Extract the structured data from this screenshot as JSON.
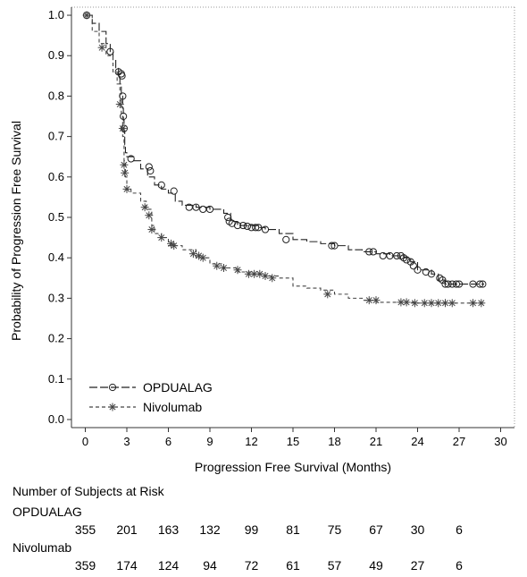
{
  "chart_data": {
    "type": "line",
    "title": "",
    "xlabel": "Progression Free Survival (Months)",
    "ylabel": "Probability of Progression Free Survival",
    "xlim": [
      -1,
      31
    ],
    "ylim": [
      -0.02,
      1.02
    ],
    "xticks": [
      0,
      3,
      6,
      9,
      12,
      15,
      18,
      21,
      24,
      27,
      30
    ],
    "yticks": [
      0.0,
      0.1,
      0.2,
      0.3,
      0.4,
      0.5,
      0.6,
      0.7,
      0.8,
      0.9,
      1.0
    ],
    "grid": false,
    "legend_position": "bottom-left",
    "series": [
      {
        "name": "OPDUALAG",
        "marker": "circle",
        "line_style": "long-dash",
        "color": "#222222",
        "x": [
          0,
          0.5,
          1.0,
          1.5,
          1.8,
          2.0,
          2.2,
          2.4,
          2.5,
          2.6,
          2.7,
          2.75,
          2.8,
          2.85,
          2.9,
          3.0,
          3.5,
          4.0,
          4.5,
          5.0,
          5.5,
          6.0,
          6.5,
          7.0,
          8.0,
          9.0,
          10.0,
          10.5,
          11.0,
          12.0,
          12.5,
          13.0,
          14.0,
          15.0,
          16.0,
          17.0,
          18.0,
          19.0,
          20.0,
          21.0,
          22.0,
          23.0,
          23.5,
          24.0,
          25.0,
          25.5,
          26.0,
          27.0,
          28.0,
          28.8
        ],
        "y": [
          1.0,
          0.98,
          0.96,
          0.93,
          0.91,
          0.89,
          0.87,
          0.85,
          0.83,
          0.8,
          0.77,
          0.74,
          0.71,
          0.68,
          0.66,
          0.65,
          0.64,
          0.62,
          0.6,
          0.58,
          0.57,
          0.56,
          0.54,
          0.53,
          0.525,
          0.52,
          0.51,
          0.49,
          0.48,
          0.48,
          0.475,
          0.47,
          0.46,
          0.445,
          0.44,
          0.435,
          0.43,
          0.42,
          0.415,
          0.41,
          0.405,
          0.4,
          0.39,
          0.37,
          0.36,
          0.345,
          0.335,
          0.335,
          0.335,
          0.335
        ],
        "censor_x": [
          0.1,
          1.8,
          2.4,
          2.6,
          2.65,
          2.7,
          2.75,
          2.8,
          3.3,
          4.6,
          4.7,
          5.5,
          6.4,
          7.5,
          8.0,
          8.5,
          9.0,
          10.3,
          10.4,
          10.6,
          11.0,
          11.4,
          11.7,
          12.0,
          12.3,
          12.5,
          13.0,
          14.5,
          17.8,
          18.0,
          20.5,
          20.8,
          21.5,
          22.0,
          22.5,
          22.8,
          23.0,
          23.2,
          23.5,
          23.7,
          24.0,
          24.6,
          25.0,
          25.6,
          25.8,
          26.0,
          26.2,
          26.5,
          26.8,
          27.0,
          28.0,
          28.5,
          28.7
        ],
        "censor_y": [
          1.0,
          0.91,
          0.86,
          0.855,
          0.85,
          0.8,
          0.75,
          0.72,
          0.645,
          0.625,
          0.615,
          0.58,
          0.565,
          0.525,
          0.525,
          0.52,
          0.52,
          0.5,
          0.49,
          0.485,
          0.48,
          0.48,
          0.478,
          0.475,
          0.475,
          0.475,
          0.47,
          0.445,
          0.43,
          0.43,
          0.415,
          0.415,
          0.405,
          0.405,
          0.405,
          0.405,
          0.4,
          0.395,
          0.39,
          0.38,
          0.37,
          0.365,
          0.36,
          0.35,
          0.345,
          0.335,
          0.335,
          0.335,
          0.335,
          0.335,
          0.335,
          0.335,
          0.335
        ]
      },
      {
        "name": "Nivolumab",
        "marker": "asterisk",
        "line_style": "short-dash",
        "color": "#444444",
        "x": [
          0,
          0.5,
          1.0,
          1.5,
          2.0,
          2.3,
          2.5,
          2.6,
          2.7,
          2.8,
          2.9,
          3.0,
          3.3,
          4.0,
          4.4,
          4.8,
          5.0,
          5.5,
          6.0,
          7.0,
          8.0,
          9.0,
          10.0,
          11.0,
          12.0,
          13.0,
          14.0,
          15.0,
          16.0,
          17.0,
          18.0,
          19.0,
          20.0,
          21.0,
          22.0,
          23.0,
          24.0,
          25.0,
          26.0,
          27.0,
          28.0,
          28.8
        ],
        "y": [
          1.0,
          0.96,
          0.93,
          0.9,
          0.86,
          0.83,
          0.79,
          0.75,
          0.7,
          0.64,
          0.6,
          0.57,
          0.56,
          0.54,
          0.52,
          0.48,
          0.46,
          0.45,
          0.43,
          0.42,
          0.4,
          0.385,
          0.375,
          0.365,
          0.36,
          0.355,
          0.35,
          0.33,
          0.325,
          0.32,
          0.31,
          0.3,
          0.295,
          0.29,
          0.29,
          0.29,
          0.288,
          0.288,
          0.288,
          0.288,
          0.288,
          0.288
        ],
        "censor_x": [
          0.1,
          1.2,
          2.5,
          2.7,
          2.8,
          2.85,
          3.0,
          4.3,
          4.6,
          4.8,
          5.5,
          6.2,
          6.4,
          7.8,
          8.2,
          8.5,
          9.5,
          10.0,
          11.0,
          11.8,
          12.2,
          12.6,
          13.0,
          13.5,
          17.5,
          20.5,
          21.0,
          22.8,
          23.2,
          23.8,
          24.5,
          25.0,
          25.5,
          26.0,
          26.5,
          28.0,
          28.6
        ],
        "censor_y": [
          1.0,
          0.92,
          0.78,
          0.72,
          0.63,
          0.61,
          0.57,
          0.525,
          0.505,
          0.47,
          0.45,
          0.435,
          0.43,
          0.41,
          0.405,
          0.4,
          0.38,
          0.375,
          0.37,
          0.36,
          0.36,
          0.36,
          0.355,
          0.35,
          0.31,
          0.295,
          0.295,
          0.29,
          0.29,
          0.288,
          0.288,
          0.288,
          0.288,
          0.288,
          0.288,
          0.288,
          0.288
        ]
      }
    ]
  },
  "risk_table": {
    "title": "Number of Subjects at Risk",
    "timepoints": [
      0,
      3,
      6,
      9,
      12,
      15,
      18,
      21,
      24,
      27
    ],
    "rows": [
      {
        "label": "OPDUALAG",
        "values": [
          "355",
          "201",
          "163",
          "132",
          "99",
          "81",
          "75",
          "67",
          "30",
          "6"
        ]
      },
      {
        "label": "Nivolumab",
        "values": [
          "359",
          "174",
          "124",
          "94",
          "72",
          "61",
          "57",
          "49",
          "27",
          "6"
        ]
      }
    ]
  }
}
